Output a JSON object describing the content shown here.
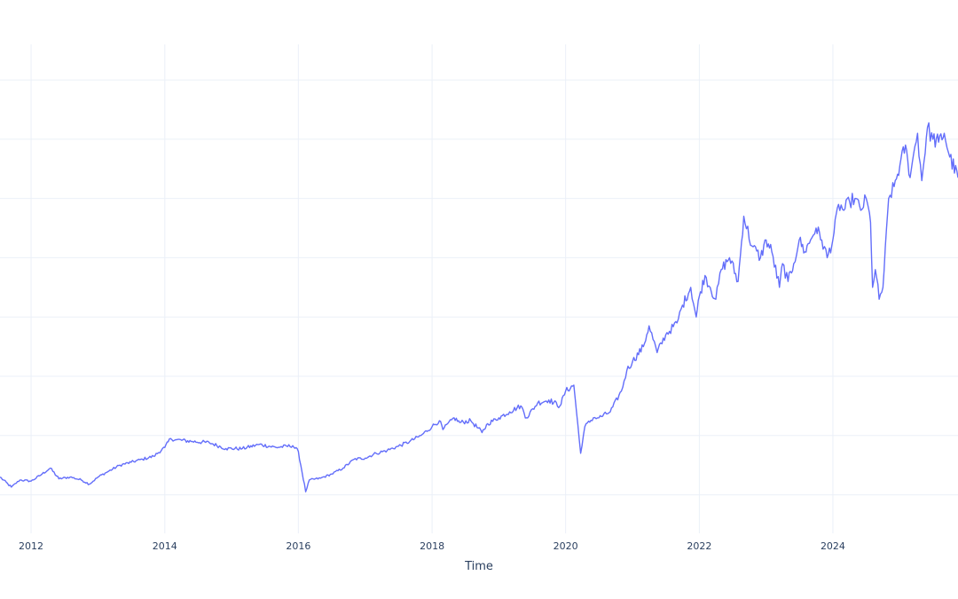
{
  "chart_data": {
    "type": "line",
    "xlabel": "Time",
    "ylabel": "",
    "x_ticks": [
      "2012",
      "2014",
      "2016",
      "2018",
      "2020",
      "2022",
      "2024"
    ],
    "xlim": [
      "2011-07-15",
      "2025-11-15"
    ],
    "ylim": [
      -0.65,
      7.6
    ],
    "y_grid": [
      0,
      1,
      2,
      3,
      4,
      5,
      6,
      7,
      8
    ],
    "grid": true,
    "legend": "none",
    "series": [
      {
        "color": "#636efa",
        "x": [
          "2011-07-15",
          "2011-09-15",
          "2011-11-01",
          "2012-01-01",
          "2012-03-01",
          "2012-04-15",
          "2012-06-01",
          "2012-08-01",
          "2012-10-01",
          "2012-11-15",
          "2013-01-01",
          "2013-03-01",
          "2013-05-01",
          "2013-07-01",
          "2013-09-01",
          "2013-11-01",
          "2014-01-01",
          "2014-02-01",
          "2014-03-01",
          "2014-06-01",
          "2014-09-01",
          "2014-12-01",
          "2015-03-01",
          "2015-06-01",
          "2015-09-01",
          "2015-12-01",
          "2016-01-01",
          "2016-02-10",
          "2016-03-01",
          "2016-05-01",
          "2016-07-01",
          "2016-09-01",
          "2016-11-01",
          "2017-01-01",
          "2017-03-01",
          "2017-05-01",
          "2017-07-01",
          "2017-09-01",
          "2017-11-01",
          "2018-01-01",
          "2018-02-10",
          "2018-03-01",
          "2018-05-01",
          "2018-06-01",
          "2018-08-01",
          "2018-10-01",
          "2018-11-01",
          "2019-01-01",
          "2019-03-01",
          "2019-05-01",
          "2019-06-01",
          "2019-08-01",
          "2019-10-01",
          "2019-12-01",
          "2020-01-01",
          "2020-02-15",
          "2020-03-23",
          "2020-04-15",
          "2020-06-01",
          "2020-07-01",
          "2020-09-01",
          "2020-11-01",
          "2020-12-01",
          "2021-01-01",
          "2021-03-01",
          "2021-04-01",
          "2021-05-15",
          "2021-07-01",
          "2021-09-01",
          "2021-10-01",
          "2021-11-15",
          "2021-12-15",
          "2022-01-01",
          "2022-02-01",
          "2022-03-01",
          "2022-04-01",
          "2022-05-01",
          "2022-06-15",
          "2022-08-01",
          "2022-09-01",
          "2022-10-15",
          "2022-12-01",
          "2023-01-01",
          "2023-02-01",
          "2023-03-15",
          "2023-04-01",
          "2023-05-01",
          "2023-06-01",
          "2023-07-01",
          "2023-08-01",
          "2023-09-01",
          "2023-10-01",
          "2023-11-01",
          "2023-12-01",
          "2024-01-01",
          "2024-02-01",
          "2024-03-01",
          "2024-04-01",
          "2024-05-01",
          "2024-06-01",
          "2024-07-01",
          "2024-07-25",
          "2024-08-05",
          "2024-08-20",
          "2024-09-10",
          "2024-10-01",
          "2024-11-01",
          "2024-12-01",
          "2025-01-01",
          "2025-02-01",
          "2025-02-20",
          "2025-03-10",
          "2025-04-08",
          "2025-05-01",
          "2025-06-01",
          "2025-07-01",
          "2025-08-01",
          "2025-09-01",
          "2025-10-01",
          "2025-11-15"
        ],
        "values": [
          0.3,
          0.13,
          0.25,
          0.23,
          0.35,
          0.45,
          0.27,
          0.3,
          0.25,
          0.18,
          0.3,
          0.4,
          0.5,
          0.55,
          0.6,
          0.65,
          0.8,
          0.95,
          0.93,
          0.9,
          0.88,
          0.78,
          0.78,
          0.85,
          0.8,
          0.83,
          0.73,
          0.05,
          0.25,
          0.28,
          0.35,
          0.45,
          0.6,
          0.62,
          0.7,
          0.75,
          0.82,
          0.9,
          1.0,
          1.15,
          1.25,
          1.1,
          1.3,
          1.22,
          1.25,
          1.05,
          1.2,
          1.3,
          1.4,
          1.5,
          1.3,
          1.55,
          1.6,
          1.5,
          1.75,
          1.85,
          0.7,
          1.15,
          1.3,
          1.3,
          1.4,
          1.75,
          2.1,
          2.25,
          2.5,
          2.85,
          2.4,
          2.7,
          2.9,
          3.2,
          3.5,
          3.0,
          3.35,
          3.7,
          3.5,
          3.3,
          3.8,
          4.0,
          3.6,
          4.7,
          4.2,
          4.0,
          4.3,
          4.1,
          3.5,
          3.9,
          3.6,
          3.9,
          4.3,
          4.1,
          4.3,
          4.5,
          4.3,
          4.0,
          4.3,
          4.9,
          4.8,
          4.95,
          5.0,
          4.8,
          5.0,
          4.6,
          3.5,
          3.8,
          3.3,
          3.5,
          5.0,
          5.2,
          5.55,
          5.9,
          5.4,
          5.6,
          6.1,
          5.3,
          6.2,
          6.0,
          5.95,
          6.1,
          5.7,
          5.35
        ]
      }
    ]
  }
}
